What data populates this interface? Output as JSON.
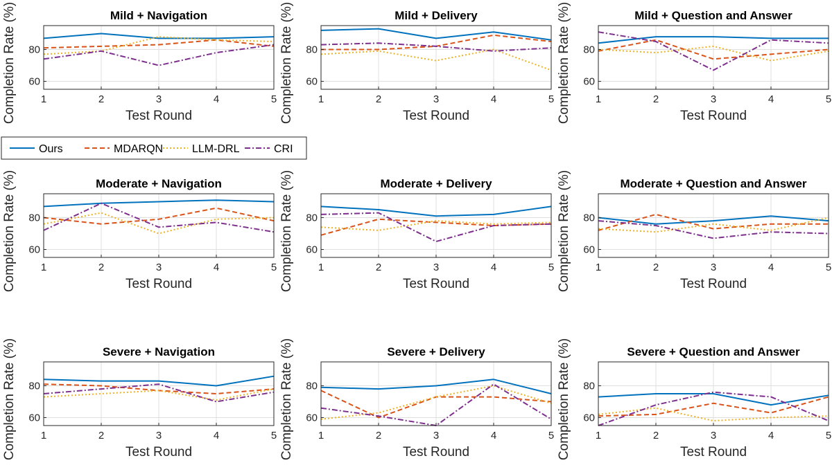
{
  "chart_data": {
    "type": "line",
    "grid": true,
    "legend_placement": "between-rows-left",
    "legend": [
      "Ours",
      "MDARQN",
      "LLM-DRL",
      "CRI"
    ],
    "series_styles": [
      {
        "name": "Ours",
        "color": "#0072BD",
        "dash": "solid"
      },
      {
        "name": "MDARQN",
        "color": "#D95319",
        "dash": "dashed"
      },
      {
        "name": "LLM-DRL",
        "color": "#EDB120",
        "dash": "dotted"
      },
      {
        "name": "CRI",
        "color": "#7E2F8E",
        "dash": "dashdot"
      }
    ],
    "panels": [
      {
        "title": "Mild + Navigation",
        "xlabel": "Test Round",
        "ylabel": "Completion Rate (%)",
        "x": [
          1,
          2,
          3,
          4,
          5
        ],
        "xticks": [
          "1",
          "2",
          "3",
          "4",
          "5"
        ],
        "ylim": [
          55,
          95
        ],
        "yticks": [
          60,
          80
        ],
        "series": [
          {
            "name": "Ours",
            "values": [
              87,
              90,
              87,
              87,
              88
            ]
          },
          {
            "name": "MDARQN",
            "values": [
              81,
              82,
              83,
              86,
              82
            ]
          },
          {
            "name": "LLM-DRL",
            "values": [
              77,
              79,
              88,
              86,
              85
            ]
          },
          {
            "name": "CRI",
            "values": [
              74,
              79,
              70,
              78,
              83
            ]
          }
        ]
      },
      {
        "title": "Mild + Delivery",
        "xlabel": "Test Round",
        "ylabel": "Completion Rate (%)",
        "x": [
          1,
          2,
          3,
          4,
          5
        ],
        "xticks": [
          "1",
          "2",
          "3",
          "4",
          "5"
        ],
        "ylim": [
          55,
          95
        ],
        "yticks": [
          60,
          80
        ],
        "series": [
          {
            "name": "Ours",
            "values": [
              92,
              93,
              87,
              91,
              86
            ]
          },
          {
            "name": "MDARQN",
            "values": [
              80,
              80,
              82,
              89,
              85
            ]
          },
          {
            "name": "LLM-DRL",
            "values": [
              77,
              79,
              73,
              80,
              67
            ]
          },
          {
            "name": "CRI",
            "values": [
              83,
              84,
              82,
              79,
              81
            ]
          }
        ]
      },
      {
        "title": "Mild + Question and Answer",
        "xlabel": "Test Round",
        "ylabel": "Completion Rate (%)",
        "x": [
          1,
          2,
          3,
          4,
          5
        ],
        "xticks": [
          "1",
          "2",
          "3",
          "4",
          "5"
        ],
        "ylim": [
          55,
          95
        ],
        "yticks": [
          60,
          80
        ],
        "series": [
          {
            "name": "Ours",
            "values": [
              84,
              88,
              88,
              87,
              87
            ]
          },
          {
            "name": "MDARQN",
            "values": [
              79,
              86,
              74,
              77,
              80
            ]
          },
          {
            "name": "LLM-DRL",
            "values": [
              80,
              78,
              82,
              73,
              79
            ]
          },
          {
            "name": "CRI",
            "values": [
              91,
              85,
              67,
              86,
              84
            ]
          }
        ]
      },
      {
        "title": "Moderate + Navigation",
        "xlabel": "Test Round",
        "ylabel": "Completion Rate (%)",
        "x": [
          1,
          2,
          3,
          4,
          5
        ],
        "xticks": [
          "1",
          "2",
          "3",
          "4",
          "5"
        ],
        "ylim": [
          55,
          95
        ],
        "yticks": [
          60,
          80
        ],
        "series": [
          {
            "name": "Ours",
            "values": [
              87,
              89,
              90,
              91,
              90
            ]
          },
          {
            "name": "MDARQN",
            "values": [
              80,
              76,
              79,
              86,
              78
            ]
          },
          {
            "name": "LLM-DRL",
            "values": [
              76,
              83,
              70,
              79,
              80
            ]
          },
          {
            "name": "CRI",
            "values": [
              72,
              89,
              74,
              77,
              71
            ]
          }
        ]
      },
      {
        "title": "Moderate + Delivery",
        "xlabel": "Test Round",
        "ylabel": "Completion Rate (%)",
        "x": [
          1,
          2,
          3,
          4,
          5
        ],
        "xticks": [
          "1",
          "2",
          "3",
          "4",
          "5"
        ],
        "ylim": [
          55,
          95
        ],
        "yticks": [
          60,
          80
        ],
        "series": [
          {
            "name": "Ours",
            "values": [
              87,
              85,
              81,
              82,
              87
            ]
          },
          {
            "name": "MDARQN",
            "values": [
              69,
              79,
              77,
              75,
              76
            ]
          },
          {
            "name": "LLM-DRL",
            "values": [
              74,
              72,
              78,
              76,
              77
            ]
          },
          {
            "name": "CRI",
            "values": [
              82,
              83,
              65,
              75,
              76
            ]
          }
        ]
      },
      {
        "title": "Moderate + Question and Answer",
        "xlabel": "Test Round",
        "ylabel": "Completion Rate (%)",
        "x": [
          1,
          2,
          3,
          4,
          5
        ],
        "xticks": [
          "1",
          "2",
          "3",
          "4",
          "5"
        ],
        "ylim": [
          55,
          95
        ],
        "yticks": [
          60,
          80
        ],
        "series": [
          {
            "name": "Ours",
            "values": [
              80,
              76,
              78,
              81,
              78
            ]
          },
          {
            "name": "MDARQN",
            "values": [
              72,
              82,
              73,
              76,
              76
            ]
          },
          {
            "name": "LLM-DRL",
            "values": [
              73,
              71,
              76,
              72,
              80
            ]
          },
          {
            "name": "CRI",
            "values": [
              78,
              75,
              67,
              71,
              70
            ]
          }
        ]
      },
      {
        "title": "Severe + Navigation",
        "xlabel": "Test Round",
        "ylabel": "Completion Rate (%)",
        "x": [
          1,
          2,
          3,
          4,
          5
        ],
        "xticks": [
          "1",
          "2",
          "3",
          "4",
          "5"
        ],
        "ylim": [
          55,
          95
        ],
        "yticks": [
          60,
          80
        ],
        "series": [
          {
            "name": "Ours",
            "values": [
              84,
              83,
              83,
              80,
              86
            ]
          },
          {
            "name": "MDARQN",
            "values": [
              81,
              80,
              77,
              75,
              78
            ]
          },
          {
            "name": "LLM-DRL",
            "values": [
              73,
              75,
              77,
              71,
              78
            ]
          },
          {
            "name": "CRI",
            "values": [
              75,
              78,
              81,
              70,
              76
            ]
          }
        ]
      },
      {
        "title": "Severe + Delivery",
        "xlabel": "Test Round",
        "ylabel": "Completion Rate (%)",
        "x": [
          1,
          2,
          3,
          4,
          5
        ],
        "xticks": [
          "1",
          "2",
          "3",
          "4",
          "5"
        ],
        "ylim": [
          55,
          95
        ],
        "yticks": [
          60,
          80
        ],
        "series": [
          {
            "name": "Ours",
            "values": [
              79,
              78,
              80,
              84,
              75
            ]
          },
          {
            "name": "MDARQN",
            "values": [
              77,
              60,
              73,
              73,
              70
            ]
          },
          {
            "name": "LLM-DRL",
            "values": [
              59,
              63,
              73,
              80,
              69
            ]
          },
          {
            "name": "CRI",
            "values": [
              66,
              61,
              55,
              81,
              59
            ]
          }
        ]
      },
      {
        "title": "Severe + Question and Answer",
        "xlabel": "Test Round",
        "ylabel": "Completion Rate (%)",
        "x": [
          1,
          2,
          3,
          4,
          5
        ],
        "xticks": [
          "1",
          "2",
          "3",
          "4",
          "5"
        ],
        "ylim": [
          55,
          95
        ],
        "yticks": [
          60,
          80
        ],
        "series": [
          {
            "name": "Ours",
            "values": [
              73,
              75,
              75,
              68,
              74
            ]
          },
          {
            "name": "MDARQN",
            "values": [
              61,
              62,
              69,
              63,
              73
            ]
          },
          {
            "name": "LLM-DRL",
            "values": [
              62,
              66,
              58,
              60,
              61
            ]
          },
          {
            "name": "CRI",
            "values": [
              55,
              68,
              76,
              73,
              58
            ]
          }
        ]
      }
    ]
  }
}
